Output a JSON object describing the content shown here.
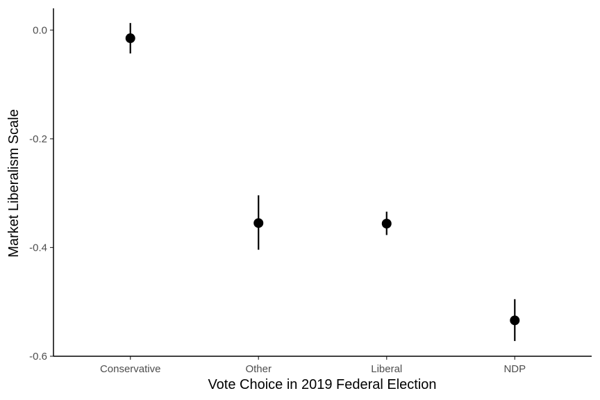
{
  "chart_data": {
    "type": "scatter",
    "title": "",
    "xlabel": "Vote Choice in 2019 Federal Election",
    "ylabel": "Market Liberalism Scale",
    "categories": [
      "Conservative",
      "Other",
      "Liberal",
      "NDP"
    ],
    "series": [
      {
        "values": [
          -0.015,
          -0.355,
          -0.356,
          -0.534
        ],
        "lower": [
          -0.043,
          -0.404,
          -0.377,
          -0.572
        ],
        "upper": [
          0.013,
          -0.304,
          -0.334,
          -0.495
        ]
      }
    ],
    "ylim": [
      -0.6,
      0.04
    ],
    "yticks": [
      0.0,
      -0.2,
      -0.4,
      -0.6
    ],
    "ytick_labels": [
      "0.0",
      "-0.2",
      "-0.4",
      "-0.6"
    ],
    "grid": false,
    "legend": "none",
    "colors": {
      "marker": "#000000",
      "axis": "#000000",
      "tick_text": "#4d4d4d"
    }
  }
}
